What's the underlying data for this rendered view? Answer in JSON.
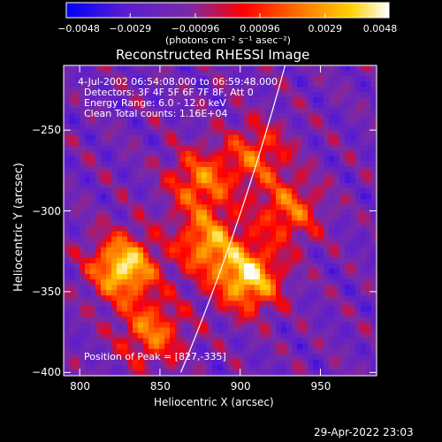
{
  "chart_data": {
    "type": "heatmap",
    "title": "Reconstructed RHESSI Image",
    "xlabel": "Heliocentric X (arcsec)",
    "ylabel": "Heliocentric Y (arcsec)",
    "xlim": [
      790,
      985
    ],
    "ylim": [
      -402,
      -210
    ],
    "xticks": [
      800,
      850,
      900,
      950
    ],
    "yticks": [
      -250,
      -300,
      -350,
      -400
    ],
    "colorbar": {
      "min": -0.0048,
      "max": 0.0048,
      "tick_values": [
        -0.0048,
        -0.0029,
        -0.00096,
        0.00096,
        0.0029,
        0.0048
      ],
      "tick_labels": [
        "-0.0048",
        "-0.0029",
        "-0.00096",
        "0.00096",
        "0.0029",
        "0.0048"
      ],
      "unit_label": "(photons cm⁻² s⁻¹ asec⁻²)",
      "colors": [
        "#0000ff",
        "#6a1cc4",
        "#8a3aa0",
        "#ff0000",
        "#ff7a00",
        "#ffd23a",
        "#ffffff"
      ]
    },
    "annotations": {
      "time_range": "4-Jul-2002 06:54:08.000 to 06:59:48.000",
      "detectors": "Detectors: 3F 4F 5F 6F 7F 8F, Att 0",
      "energy_range": "Energy Range: 6.0 - 12.0 keV",
      "clean_counts": "Clean     Total counts: 1.16E+04",
      "peak": "Position of Peak = [827,-335]"
    },
    "peak": [
      827,
      -335
    ],
    "bright_sources": [
      {
        "x": 827,
        "y": -335,
        "value": 0.0048
      },
      {
        "x": 905,
        "y": -342,
        "value": 0.0045
      },
      {
        "x": 880,
        "y": -320,
        "value": 0.0035
      },
      {
        "x": 875,
        "y": -282,
        "value": 0.003
      },
      {
        "x": 930,
        "y": -300,
        "value": 0.0028
      },
      {
        "x": 845,
        "y": -375,
        "value": 0.003
      },
      {
        "x": 910,
        "y": -265,
        "value": 0.0025
      }
    ],
    "limb_curve": [
      [
        863,
        -400
      ],
      [
        900,
        -312
      ],
      [
        928,
        -210
      ]
    ]
  },
  "footer": {
    "datetime": "29-Apr-2022 23:03"
  },
  "colors": {
    "background": "#000000",
    "text": "#ffffff"
  }
}
